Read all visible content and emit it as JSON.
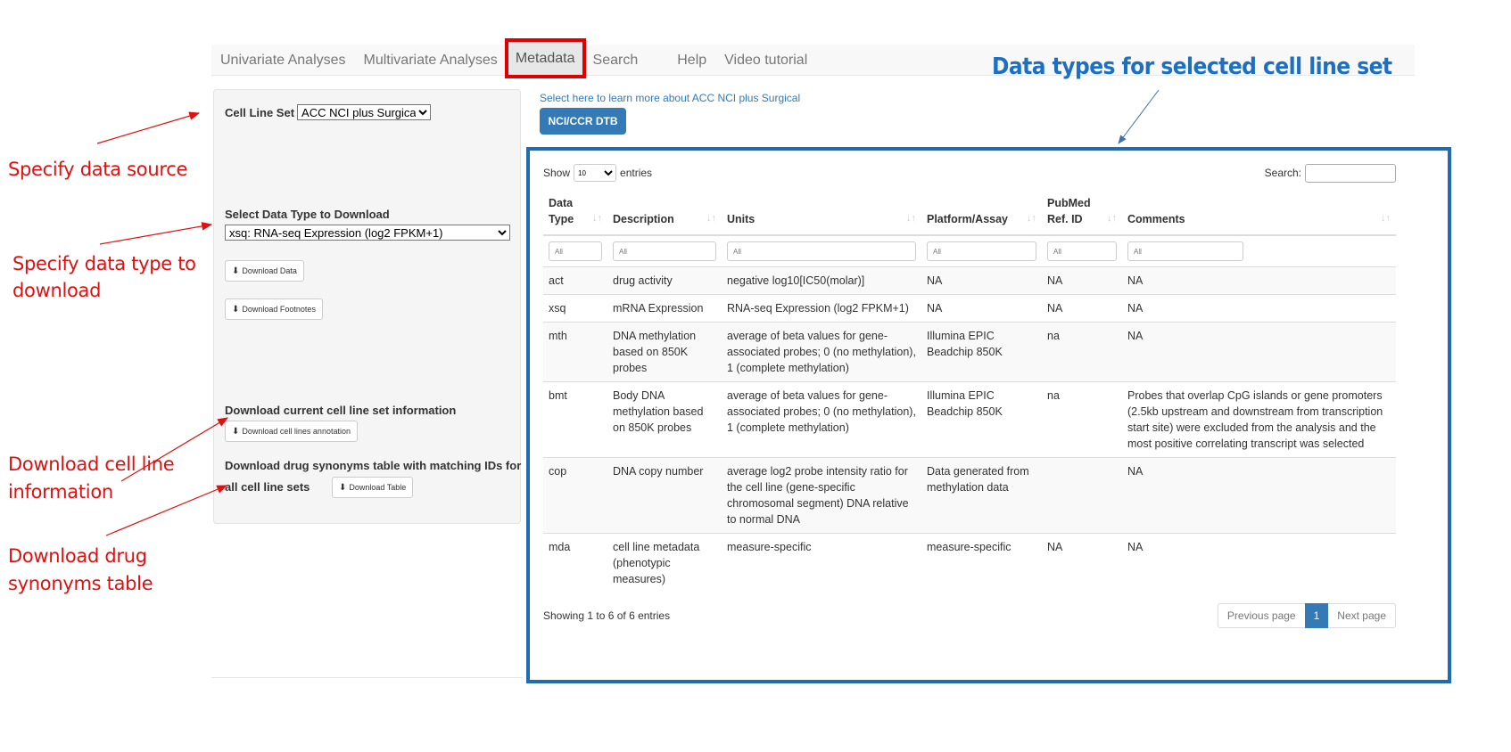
{
  "nav": {
    "items": [
      "Univariate Analyses",
      "Multivariate Analyses",
      "Metadata",
      "Search",
      "Help",
      "Video tutorial"
    ],
    "active": "Metadata"
  },
  "sidebar": {
    "cell_line_set_label": "Cell Line Set",
    "cell_line_set_value": "ACC NCI plus Surgical",
    "data_type_label": "Select Data Type to Download",
    "data_type_value": "xsq: RNA-seq Expression (log2 FPKM+1)",
    "download_data": "Download Data",
    "download_footnotes": "Download Footnotes",
    "cell_info_label": "Download current cell line set information",
    "download_annotation": "Download cell lines annotation",
    "synonyms_label_1": "Download drug synonyms table with matching IDs for",
    "synonyms_label_2": "all cell line sets",
    "download_table": "Download Table"
  },
  "main": {
    "learn_link": "Select here to learn more about ACC NCI plus Surgical",
    "dtb_button": "NCI/CCR DTB",
    "show_label": "Show",
    "entries_value": "10",
    "entries_label": "entries",
    "search_label": "Search:",
    "columns": [
      "Data Type",
      "Description",
      "Units",
      "Platform/Assay",
      "PubMed Ref. ID",
      "Comments"
    ],
    "filter_placeholder": "All",
    "rows": [
      [
        "act",
        "drug activity",
        "negative log10[IC50(molar)]",
        "NA",
        "NA",
        "NA"
      ],
      [
        "xsq",
        "mRNA Expression",
        "RNA-seq Expression (log2 FPKM+1)",
        "NA",
        "NA",
        "NA"
      ],
      [
        "mth",
        "DNA methylation based on 850K probes",
        "average of beta values for gene-associated probes; 0 (no methylation), 1 (complete methylation)",
        "Illumina EPIC Beadchip 850K",
        "na",
        "NA"
      ],
      [
        "bmt",
        "Body DNA methylation based on 850K probes",
        "average of beta values for gene-associated probes; 0 (no methylation), 1 (complete methylation)",
        "Illumina EPIC Beadchip 850K",
        "na",
        "Probes that overlap CpG islands or gene promoters (2.5kb upstream and downstream from transcription start site) were excluded from the analysis and the most positive correlating transcript was selected"
      ],
      [
        "cop",
        "DNA copy number",
        "average log2 probe intensity ratio for the cell line (gene-specific chromosomal segment) DNA relative to normal DNA",
        "Data generated from methylation data",
        "",
        "NA"
      ],
      [
        "mda",
        "cell line metadata (phenotypic measures)",
        "measure-specific",
        "measure-specific",
        "NA",
        "NA"
      ]
    ],
    "info": "Showing 1 to 6 of 6 entries",
    "pager": {
      "prev": "Previous page",
      "current": "1",
      "next": "Next page"
    }
  },
  "annotations": {
    "data_source": "Specify data source",
    "data_type_1": "Specify data type to",
    "data_type_2": "download",
    "cell_info_1": "Download cell line",
    "cell_info_2": "information",
    "synonyms_1": "Download drug",
    "synonyms_2": "synonyms table",
    "blue_title": "Data types for selected cell line set"
  },
  "colors": {
    "annotation_red": "#e01010",
    "highlight_blue": "#1f6bb4",
    "primary": "#337ab7"
  }
}
